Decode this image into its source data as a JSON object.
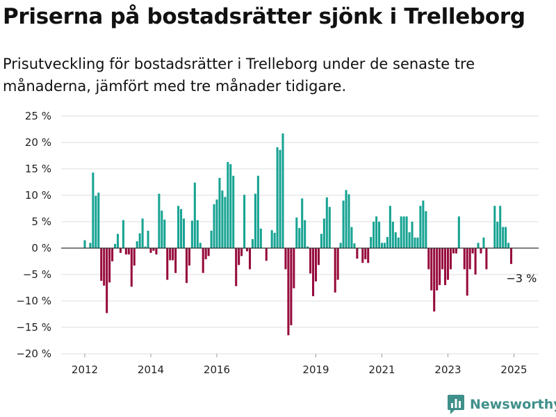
{
  "title": "Priserna på bostadsrätter sjönk i Trelleborg",
  "subtitle": "Prisutveckling för bostadsrätter i Trelleborg under de senaste tre månaderna, jämfört med tre månader tidigare.",
  "brand": {
    "name": "Newsworthy",
    "logo_icon": "bar-chart-icon",
    "color": "#3f8f8a"
  },
  "colors": {
    "positive": "#17a393",
    "negative": "#960a3c",
    "grid": "#dddddd",
    "axis": "#333333"
  },
  "chart_data": {
    "type": "bar",
    "title": "Priserna på bostadsrätter sjönk i Trelleborg",
    "xlabel": "",
    "ylabel": "",
    "ylim": [
      -20,
      25
    ],
    "yticks": [
      25,
      20,
      15,
      10,
      5,
      0,
      -5,
      -10,
      -15,
      -20
    ],
    "ytick_labels": [
      "25 %",
      "20 %",
      "15 %",
      "10 %",
      "5 %",
      "0 %",
      "−5 %",
      "−10 %",
      "−15 %",
      "−20 %"
    ],
    "xticks": [
      2012,
      2014,
      2016,
      2019,
      2021,
      2023,
      2025
    ],
    "xtick_labels": [
      "2012",
      "2014",
      "2016",
      "2019",
      "2021",
      "2023",
      "2025"
    ],
    "grid": true,
    "x_start": "2012-01",
    "frequency": "monthly",
    "values": [
      1.5,
      0,
      1,
      14.3,
      9.9,
      10.5,
      -6.2,
      -7.1,
      -12.3,
      -6.5,
      -2.5,
      0.8,
      2.7,
      -0.9,
      5.3,
      -1.2,
      -1.2,
      -7.3,
      -3.3,
      1.3,
      2.8,
      5.6,
      0.3,
      3.3,
      -0.9,
      -0.5,
      -1.2,
      10.3,
      7.1,
      5.4,
      -6,
      -2.3,
      -2.3,
      -4.7,
      8,
      7.4,
      5.6,
      -6.6,
      -3.3,
      5.2,
      12.4,
      5.3,
      1,
      -4.7,
      -2.1,
      -1.5,
      3.3,
      8.3,
      9.2,
      13.3,
      10.9,
      9.7,
      16.3,
      15.9,
      13.7,
      -7.2,
      -3.2,
      -1.5,
      10.1,
      -0.6,
      -4,
      1.7,
      10.3,
      13.7,
      3.7,
      0,
      -2.4,
      0,
      3.4,
      2.9,
      19.1,
      18.6,
      21.7,
      -4,
      -16.5,
      -14.6,
      -7.6,
      5.8,
      3.8,
      9.4,
      5.3,
      0.3,
      -4.8,
      -9.1,
      -6.3,
      -3.2,
      2.7,
      5.6,
      9.6,
      7.8,
      0,
      -8.4,
      -6,
      1,
      9,
      11,
      10.2,
      4,
      0.9,
      -2,
      0,
      -2.8,
      -2.1,
      -2.8,
      2.1,
      5,
      6,
      5,
      1,
      1,
      2.1,
      8,
      5,
      3,
      2,
      6,
      6,
      6,
      3,
      5,
      2,
      2,
      8,
      9,
      7,
      -4,
      -8,
      -12,
      -8,
      -7,
      -4,
      -7,
      -6,
      -4,
      -1,
      -1,
      6,
      0,
      -4,
      -9,
      -4,
      -1,
      -5,
      1,
      -1,
      2,
      -4,
      0,
      0,
      8,
      5,
      8,
      4,
      4,
      1,
      -3
    ],
    "annotations": [
      {
        "text": "−3 %",
        "x": "2025-04",
        "y": -3
      }
    ]
  }
}
